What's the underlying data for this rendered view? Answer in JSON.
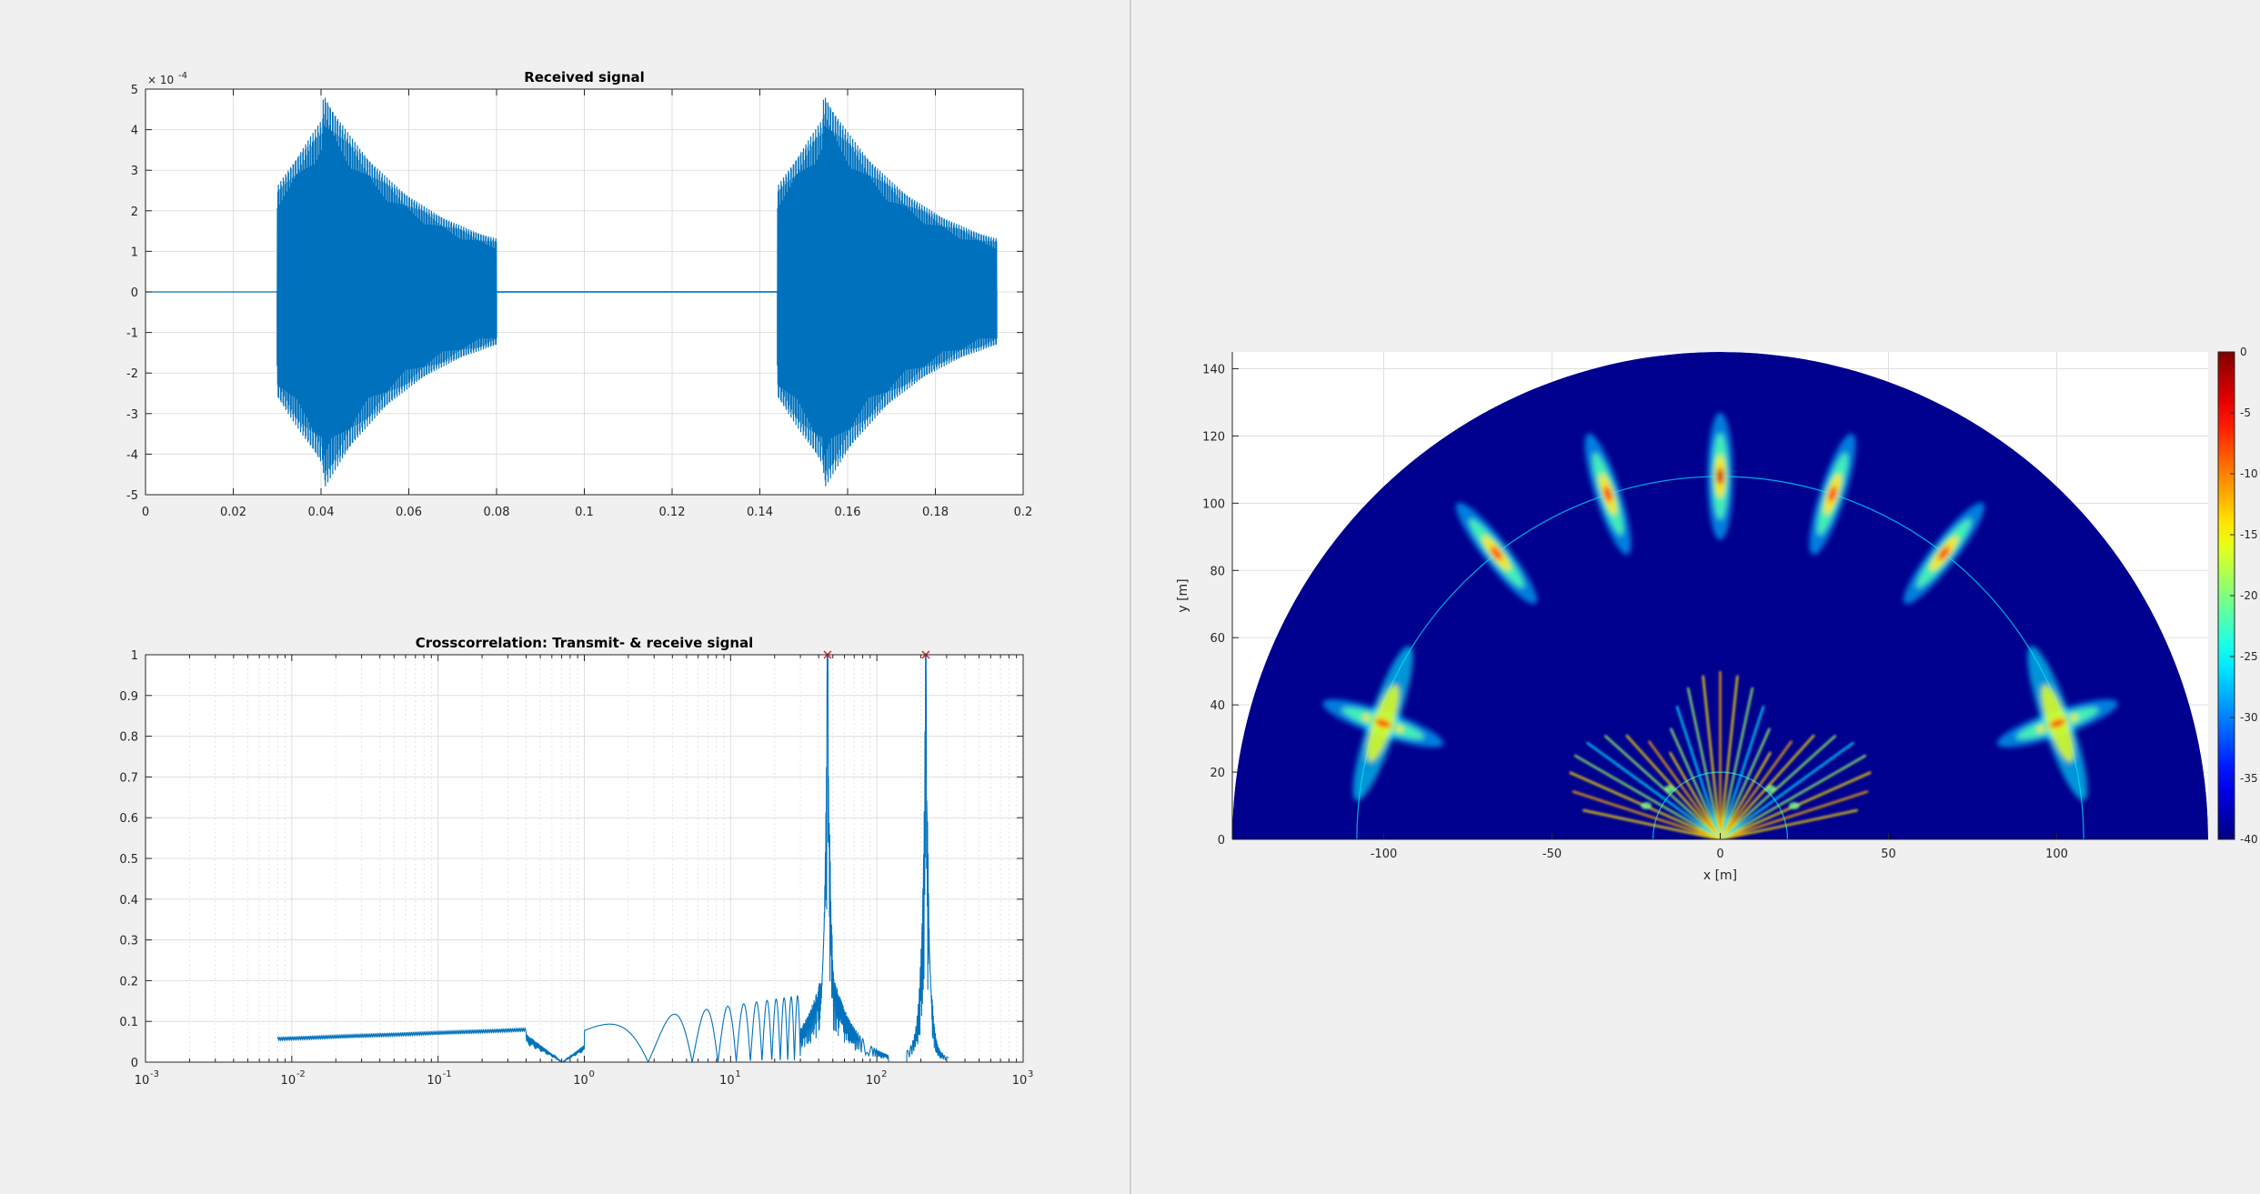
{
  "colors": {
    "background": "#f0f0f0",
    "plot_background": "#ffffff",
    "line": "#0072bd",
    "marker": "#d62728",
    "grid": "#dfdfdf",
    "axis": "#262626",
    "heatmap_background": "#00008f"
  },
  "chart_data": [
    {
      "id": "received-signal",
      "type": "line",
      "title": "Received signal",
      "xlabel": "",
      "ylabel": "",
      "xlim": [
        0,
        0.2
      ],
      "ylim": [
        -5,
        5
      ],
      "exponent_label": "× 10",
      "exponent_value": "-4",
      "grid": true,
      "xticks": [
        "0",
        "0.02",
        "0.04",
        "0.06",
        "0.08",
        "0.1",
        "0.12",
        "0.14",
        "0.16",
        "0.18",
        "0.2"
      ],
      "xtick_values": [
        0,
        0.02,
        0.04,
        0.06,
        0.08,
        0.1,
        0.12,
        0.14,
        0.16,
        0.18,
        0.2
      ],
      "yticks": [
        "5",
        "4",
        "3",
        "2",
        "1",
        "0",
        "-1",
        "-2",
        "-3",
        "-4",
        "-5"
      ],
      "ytick_values": [
        5,
        4,
        3,
        2,
        1,
        0,
        -1,
        -2,
        -3,
        -4,
        -5
      ],
      "bursts": [
        {
          "start": 0.03,
          "end": 0.08,
          "peak_time": 0.0405,
          "peak_amplitude": 4.3
        },
        {
          "start": 0.144,
          "end": 0.194,
          "peak_time": 0.1545,
          "peak_amplitude": 4.3
        }
      ],
      "series": [
        {
          "values_description_only": false
        }
      ]
    },
    {
      "id": "crosscorrelation",
      "type": "line",
      "title": "Crosscorrelation: Transmit- & receive signal",
      "xlabel": "",
      "ylabel": "",
      "xscale": "log",
      "xlim": [
        0.001,
        1000
      ],
      "ylim": [
        0,
        1
      ],
      "grid": true,
      "xticks_base": [
        "10",
        "10",
        "10",
        "10",
        "10",
        "10",
        "10"
      ],
      "xticks_exp": [
        "-3",
        "-2",
        "-1",
        "0",
        "1",
        "2",
        "3"
      ],
      "xtick_values": [
        0.001,
        0.01,
        0.1,
        1,
        10,
        100,
        1000
      ],
      "yticks": [
        "1",
        "0.9",
        "0.8",
        "0.7",
        "0.6",
        "0.5",
        "0.4",
        "0.3",
        "0.2",
        "0.1",
        "0"
      ],
      "ytick_values": [
        1,
        0.9,
        0.8,
        0.7,
        0.6,
        0.5,
        0.4,
        0.3,
        0.2,
        0.1,
        0
      ],
      "peaks": [
        {
          "x": 46,
          "y": 1.0
        },
        {
          "x": 216,
          "y": 1.0
        }
      ],
      "baseline_start": {
        "x": 0.008,
        "y": 0.057
      }
    },
    {
      "id": "sonar-image",
      "type": "heatmap",
      "xlabel": "x [m]",
      "ylabel": "y [m]",
      "xlim": [
        -145,
        145
      ],
      "ylim": [
        0,
        145
      ],
      "range_max": 145,
      "grid": true,
      "xticks": [
        "-100",
        "-50",
        "0",
        "50",
        "100"
      ],
      "xtick_values": [
        -100,
        -50,
        0,
        50,
        100
      ],
      "yticks": [
        "140",
        "120",
        "100",
        "80",
        "60",
        "40",
        "20",
        "0"
      ],
      "ytick_values": [
        140,
        120,
        100,
        80,
        60,
        40,
        20,
        0
      ],
      "colorbar": {
        "limits": [
          -40,
          0
        ],
        "ticks": [
          "0",
          "-5",
          "-10",
          "-15",
          "-20",
          "-25",
          "-30",
          "-35",
          "-40"
        ],
        "tick_values": [
          0,
          -5,
          -10,
          -15,
          -20,
          -25,
          -30,
          -35,
          -40
        ]
      },
      "targets": [
        {
          "angle_deg": 90,
          "range": 108
        },
        {
          "angle_deg": 72,
          "range": 108
        },
        {
          "angle_deg": 108,
          "range": 108
        },
        {
          "angle_deg": 52,
          "range": 108
        },
        {
          "angle_deg": 128,
          "range": 108
        },
        {
          "angle_deg": 19,
          "range": 106
        },
        {
          "angle_deg": 161,
          "range": 106
        }
      ]
    }
  ]
}
